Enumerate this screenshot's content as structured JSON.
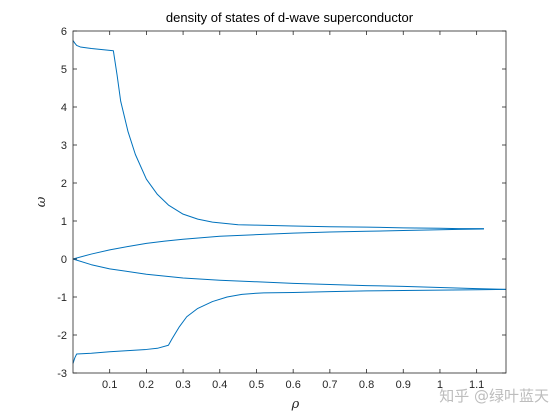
{
  "chart_data": {
    "type": "line",
    "title": "density of states of d-wave superconductor",
    "xlabel": "ρ",
    "ylabel": "ω",
    "xlim": [
      0,
      1.18
    ],
    "ylim": [
      -3,
      6
    ],
    "xticks": [
      0.1,
      0.2,
      0.3,
      0.4,
      0.5,
      0.6,
      0.7,
      0.8,
      0.9,
      1,
      1.1
    ],
    "xtick_labels": [
      "0.1",
      "0.2",
      "0.3",
      "0.4",
      "0.5",
      "0.6",
      "0.7",
      "0.8",
      "0.9",
      "1",
      "1.1"
    ],
    "yticks": [
      -3,
      -2,
      -1,
      0,
      1,
      2,
      3,
      4,
      5,
      6
    ],
    "ytick_labels": [
      "-3",
      "-2",
      "-1",
      "0",
      "1",
      "2",
      "3",
      "4",
      "5",
      "6"
    ],
    "grid": false,
    "box": true,
    "line_color": "#0072BD",
    "series": [
      {
        "x": [
          0.0,
          0.005,
          0.01,
          0.02,
          0.05,
          0.08,
          0.11,
          0.12,
          0.13,
          0.15,
          0.17,
          0.2,
          0.23,
          0.26,
          0.3,
          0.34,
          0.38,
          0.42,
          0.45,
          0.5,
          0.6,
          0.7,
          0.8,
          0.9,
          1.0,
          1.05,
          1.12
        ],
        "y": [
          5.75,
          5.68,
          5.62,
          5.58,
          5.54,
          5.51,
          5.48,
          4.85,
          4.15,
          3.35,
          2.75,
          2.1,
          1.7,
          1.42,
          1.18,
          1.05,
          0.97,
          0.93,
          0.9,
          0.89,
          0.87,
          0.85,
          0.84,
          0.82,
          0.81,
          0.8,
          0.8
        ]
      },
      {
        "x": [
          0.0,
          0.05,
          0.1,
          0.15,
          0.2,
          0.25,
          0.3,
          0.4,
          0.5,
          0.6,
          0.7,
          0.8,
          0.9,
          1.0,
          1.05,
          1.12
        ],
        "y": [
          0.0,
          0.13,
          0.24,
          0.33,
          0.41,
          0.47,
          0.52,
          0.6,
          0.64,
          0.68,
          0.71,
          0.73,
          0.75,
          0.77,
          0.78,
          0.79
        ]
      },
      {
        "x": [
          0.0,
          0.05,
          0.1,
          0.2,
          0.3,
          0.4,
          0.5,
          0.6,
          0.7,
          0.8,
          0.9,
          1.0,
          1.1,
          1.18
        ],
        "y": [
          0.0,
          -0.15,
          -0.26,
          -0.4,
          -0.5,
          -0.56,
          -0.6,
          -0.64,
          -0.67,
          -0.7,
          -0.72,
          -0.75,
          -0.78,
          -0.8
        ]
      },
      {
        "x": [
          0.0,
          0.005,
          0.01,
          0.05,
          0.1,
          0.15,
          0.2,
          0.23,
          0.26,
          0.27,
          0.29,
          0.31,
          0.34,
          0.38,
          0.42,
          0.46,
          0.5,
          0.52,
          0.6,
          0.7,
          0.8,
          0.9,
          1.0,
          1.1,
          1.18
        ],
        "y": [
          -2.75,
          -2.6,
          -2.5,
          -2.48,
          -2.44,
          -2.41,
          -2.38,
          -2.35,
          -2.27,
          -2.1,
          -1.78,
          -1.52,
          -1.3,
          -1.12,
          -1.0,
          -0.93,
          -0.9,
          -0.89,
          -0.88,
          -0.86,
          -0.84,
          -0.83,
          -0.82,
          -0.81,
          -0.8
        ]
      }
    ]
  },
  "watermark": {
    "text": "知乎 @绿叶蓝天"
  }
}
